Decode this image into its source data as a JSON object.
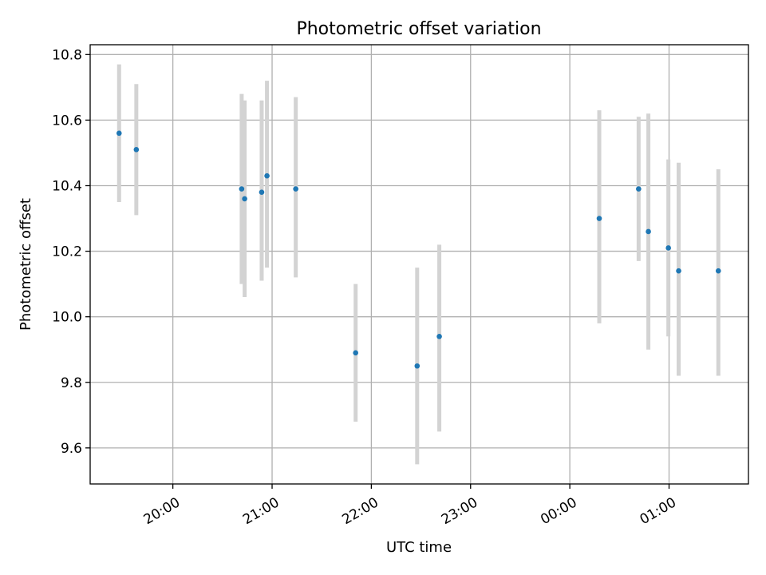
{
  "chart_data": {
    "type": "scatter",
    "title": "Photometric offset variation",
    "xlabel": "UTC time",
    "ylabel": "Photometric offset",
    "x_tick_labels": [
      "20:00",
      "21:00",
      "22:00",
      "23:00",
      "00:00",
      "01:00"
    ],
    "x_ticks_minutes": [
      0,
      60,
      120,
      180,
      240,
      300
    ],
    "xlim_minutes": [
      -50,
      348
    ],
    "y_ticks": [
      9.6,
      9.8,
      10.0,
      10.2,
      10.4,
      10.6,
      10.8
    ],
    "ylim": [
      9.49,
      10.83
    ],
    "grid": true,
    "colors": {
      "point": "#1f77b4",
      "errorbar": "#d3d3d3"
    },
    "points": [
      {
        "t": -32.5,
        "y": 10.56,
        "ylow": 10.35,
        "yhigh": 10.77
      },
      {
        "t": -22.1,
        "y": 10.51,
        "ylow": 10.31,
        "yhigh": 10.71
      },
      {
        "t": 41.6,
        "y": 10.39,
        "ylow": 10.1,
        "yhigh": 10.68
      },
      {
        "t": 43.4,
        "y": 10.36,
        "ylow": 10.06,
        "yhigh": 10.66
      },
      {
        "t": 53.7,
        "y": 10.38,
        "ylow": 10.11,
        "yhigh": 10.66
      },
      {
        "t": 56.9,
        "y": 10.43,
        "ylow": 10.15,
        "yhigh": 10.72
      },
      {
        "t": 74.3,
        "y": 10.39,
        "ylow": 10.12,
        "yhigh": 10.67
      },
      {
        "t": 110.5,
        "y": 9.89,
        "ylow": 9.68,
        "yhigh": 10.1
      },
      {
        "t": 147.7,
        "y": 9.85,
        "ylow": 9.55,
        "yhigh": 10.15
      },
      {
        "t": 161.1,
        "y": 9.94,
        "ylow": 9.65,
        "yhigh": 10.22
      },
      {
        "t": 257.8,
        "y": 10.3,
        "ylow": 9.98,
        "yhigh": 10.63
      },
      {
        "t": 281.6,
        "y": 10.39,
        "ylow": 10.17,
        "yhigh": 10.61
      },
      {
        "t": 287.5,
        "y": 10.26,
        "ylow": 9.9,
        "yhigh": 10.62
      },
      {
        "t": 299.6,
        "y": 10.21,
        "ylow": 9.94,
        "yhigh": 10.48
      },
      {
        "t": 305.8,
        "y": 10.14,
        "ylow": 9.82,
        "yhigh": 10.47
      },
      {
        "t": 329.8,
        "y": 10.14,
        "ylow": 9.82,
        "yhigh": 10.45
      }
    ]
  }
}
